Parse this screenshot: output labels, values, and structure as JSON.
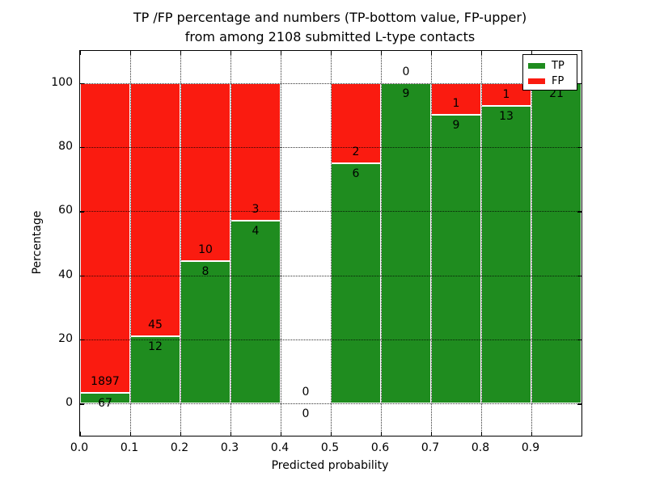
{
  "chart_data": {
    "type": "bar",
    "stacked": true,
    "title_lines": [
      "TP /FP percentage and numbers (TP-bottom value, FP-upper)",
      "from among 2108 submitted L-type contacts"
    ],
    "xlabel": "Predicted probability",
    "ylabel": "Percentage",
    "xlim": [
      0.0,
      1.0
    ],
    "ylim": [
      -10,
      110
    ],
    "grid": true,
    "legend_position": "upper right",
    "legend": [
      {
        "label": "TP",
        "color": "#1f8c1f"
      },
      {
        "label": "FP",
        "color": "#fa1b10"
      }
    ],
    "colors": {
      "tp": "#1f8c1f",
      "fp": "#fa1b10",
      "bar_edge": "#ffffff"
    },
    "x_ticks": [
      {
        "label": "0.0",
        "value": 0.0
      },
      {
        "label": "0.1",
        "value": 0.1
      },
      {
        "label": "0.2",
        "value": 0.2
      },
      {
        "label": "0.3",
        "value": 0.3
      },
      {
        "label": "0.4",
        "value": 0.4
      },
      {
        "label": "0.5",
        "value": 0.5
      },
      {
        "label": "0.6",
        "value": 0.6
      },
      {
        "label": "0.7",
        "value": 0.7
      },
      {
        "label": "0.8",
        "value": 0.8
      },
      {
        "label": "0.9",
        "value": 0.9
      }
    ],
    "y_ticks": [
      {
        "label": "0",
        "value": 0
      },
      {
        "label": "20",
        "value": 20
      },
      {
        "label": "40",
        "value": 40
      },
      {
        "label": "60",
        "value": 60
      },
      {
        "label": "80",
        "value": 80
      },
      {
        "label": "100",
        "value": 100
      }
    ],
    "bins": [
      {
        "range": [
          0.0,
          0.1
        ],
        "tp": 67,
        "fp": 1897,
        "tp_pct": 3.41,
        "fp_pct": 96.59,
        "has_bar": true
      },
      {
        "range": [
          0.1,
          0.2
        ],
        "tp": 12,
        "fp": 45,
        "tp_pct": 21.05,
        "fp_pct": 78.95,
        "has_bar": true
      },
      {
        "range": [
          0.2,
          0.3
        ],
        "tp": 8,
        "fp": 10,
        "tp_pct": 44.44,
        "fp_pct": 55.56,
        "has_bar": true
      },
      {
        "range": [
          0.3,
          0.4
        ],
        "tp": 4,
        "fp": 3,
        "tp_pct": 57.14,
        "fp_pct": 42.86,
        "has_bar": true
      },
      {
        "range": [
          0.4,
          0.5
        ],
        "tp": 0,
        "fp": 0,
        "tp_pct": 0,
        "fp_pct": 0,
        "has_bar": false
      },
      {
        "range": [
          0.5,
          0.6
        ],
        "tp": 6,
        "fp": 2,
        "tp_pct": 75.0,
        "fp_pct": 25.0,
        "has_bar": true
      },
      {
        "range": [
          0.6,
          0.7
        ],
        "tp": 9,
        "fp": 0,
        "tp_pct": 100.0,
        "fp_pct": 0.0,
        "has_bar": true
      },
      {
        "range": [
          0.7,
          0.8
        ],
        "tp": 9,
        "fp": 1,
        "tp_pct": 90.0,
        "fp_pct": 10.0,
        "has_bar": true
      },
      {
        "range": [
          0.8,
          0.9
        ],
        "tp": 13,
        "fp": 1,
        "tp_pct": 92.86,
        "fp_pct": 7.14,
        "has_bar": true
      },
      {
        "range": [
          0.9,
          1.0
        ],
        "tp": 21,
        "fp": 0,
        "tp_pct": 100.0,
        "fp_pct": 0.0,
        "has_bar": true
      }
    ]
  }
}
